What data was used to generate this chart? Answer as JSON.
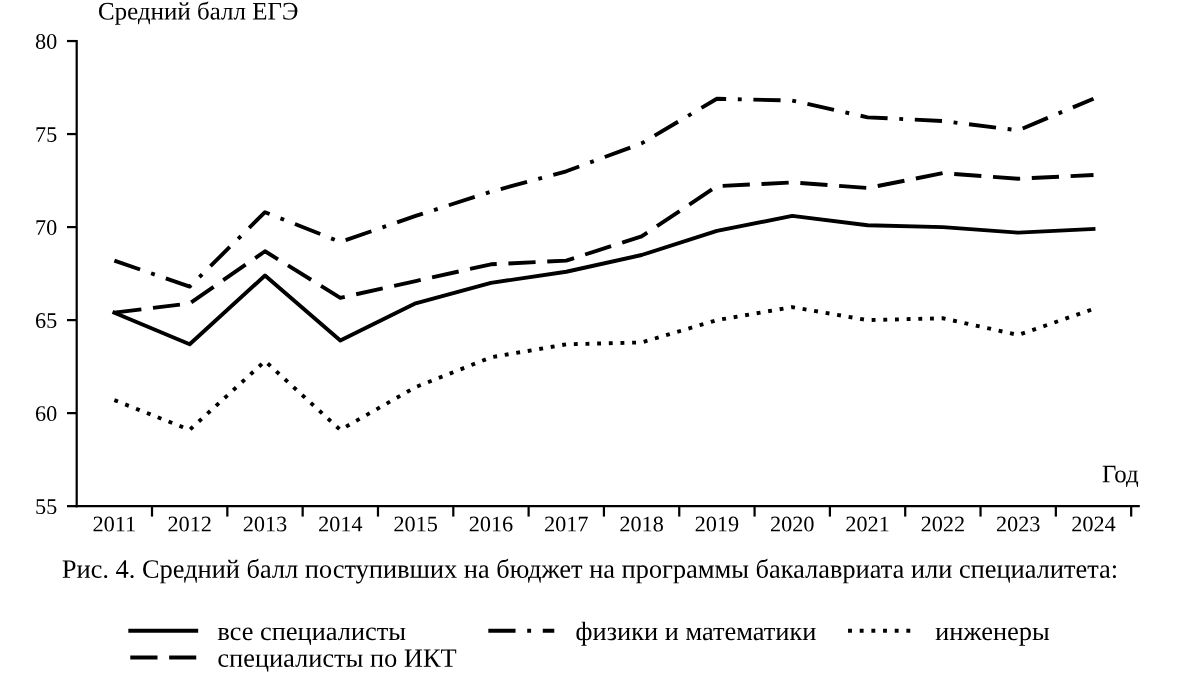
{
  "chart_data": {
    "type": "line",
    "ylabel": "Средний балл ЕГЭ",
    "xlabel": "Год",
    "categories": [
      "2011",
      "2012",
      "2013",
      "2014",
      "2015",
      "2016",
      "2017",
      "2018",
      "2019",
      "2020",
      "2021",
      "2022",
      "2023",
      "2024"
    ],
    "series": [
      {
        "name": "все специалисты",
        "color": "#000000",
        "line_style": "solid",
        "values": [
          65.4,
          63.7,
          67.4,
          63.9,
          65.9,
          67.0,
          67.6,
          68.5,
          69.8,
          70.6,
          70.1,
          70.0,
          69.7,
          69.9
        ]
      },
      {
        "name": "специалисты по ИКТ",
        "color": "#000000",
        "line_style": "dashed",
        "values": [
          65.4,
          65.9,
          68.7,
          66.2,
          67.1,
          68.0,
          68.2,
          69.5,
          72.2,
          72.4,
          72.1,
          72.9,
          72.6,
          72.8
        ]
      },
      {
        "name": "физики и математики",
        "color": "#000000",
        "line_style": "dashdot",
        "values": [
          68.2,
          66.8,
          70.8,
          69.2,
          70.6,
          71.9,
          73.0,
          74.5,
          76.9,
          76.8,
          75.9,
          75.7,
          75.2,
          76.9
        ]
      },
      {
        "name": "инженеры",
        "color": "#000000",
        "line_style": "dotted",
        "values": [
          60.7,
          59.1,
          62.8,
          59.1,
          61.4,
          63.0,
          63.7,
          63.8,
          65.0,
          65.7,
          65.0,
          65.1,
          64.2,
          65.6
        ]
      }
    ],
    "ylim": [
      55,
      80
    ],
    "yticks": [
      55,
      60,
      65,
      70,
      75,
      80
    ],
    "grid": false,
    "legend": "bottom",
    "annotations": [
      "Рис. 4. Средний балл поступивших на бюджет на программы бакалавриата или специалитета:"
    ]
  }
}
